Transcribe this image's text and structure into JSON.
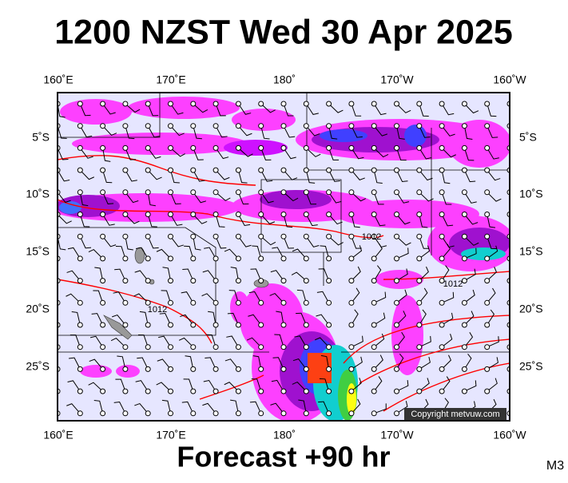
{
  "title": "1200 NZST Wed 30 Apr 2025",
  "top_lon_labels": [
    "160˚E",
    "170˚E",
    "180˚",
    "170˚W",
    "160˚W"
  ],
  "bottom_lon_labels": [
    "160˚E",
    "170˚E",
    "180˚",
    "170˚W",
    "160˚W"
  ],
  "left_lat_labels": [
    "5˚S",
    "10˚S",
    "15˚S",
    "20˚S",
    "25˚S"
  ],
  "right_lat_labels": [
    "5˚S",
    "10˚S",
    "15˚S",
    "20˚S",
    "25˚S"
  ],
  "isobar_labels": [
    "1012",
    "1012",
    "1012"
  ],
  "copyright": "Copyright metvuw.com",
  "footer": "Forecast +90 hr",
  "model": "M3"
}
